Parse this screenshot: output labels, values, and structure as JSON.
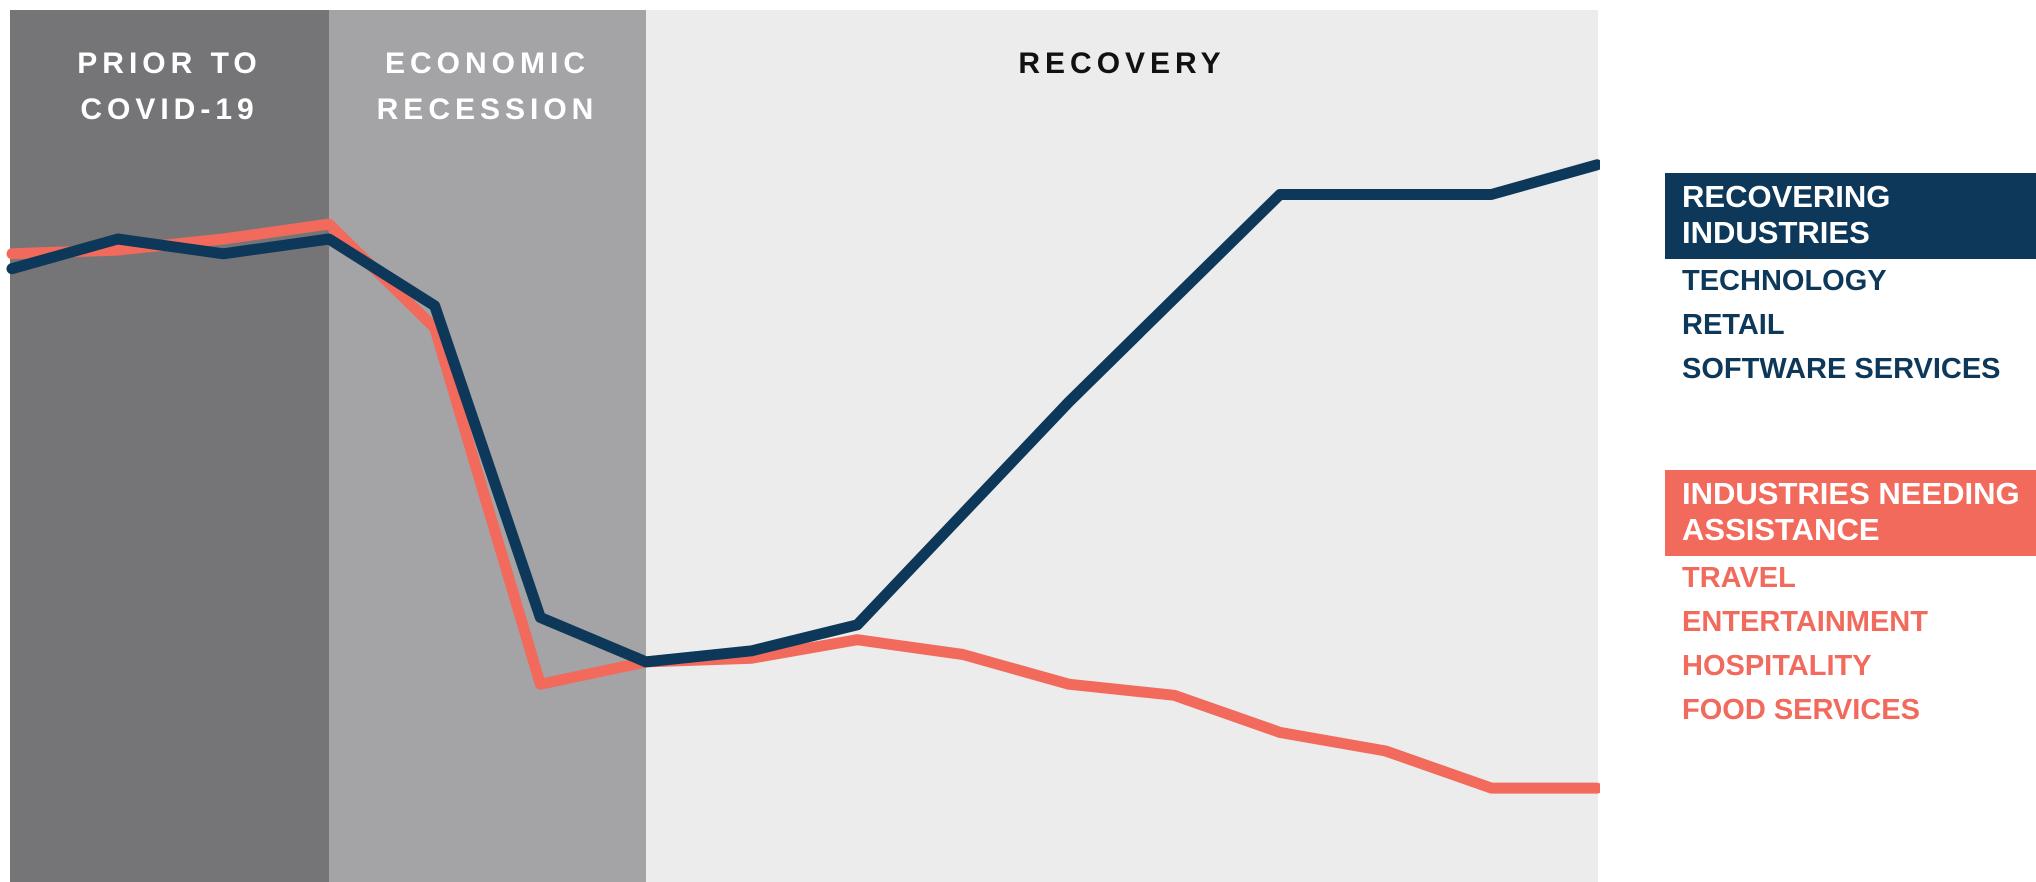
{
  "chart_data": {
    "type": "line",
    "colors": {
      "phase_fills": [
        "#757577",
        "#a4a4a7",
        "#ececec"
      ],
      "recovering": "#0d3859",
      "assistance": "#f26a5c"
    },
    "phases": [
      {
        "lines": [
          "PRIOR TO",
          "COVID-19"
        ],
        "text_color": "#ffffff"
      },
      {
        "lines": [
          "ECONOMIC",
          "RECESSION"
        ],
        "text_color": "#ffffff"
      },
      {
        "lines": [
          "RECOVERY"
        ],
        "text_color": "#111111"
      }
    ],
    "phase_boundaries": [
      0,
      3,
      6,
      15
    ],
    "x": [
      0,
      1,
      2,
      3,
      4,
      5,
      6,
      7,
      8,
      9,
      10,
      11,
      12,
      13,
      14,
      15
    ],
    "ylim": [
      0,
      100
    ],
    "series": [
      {
        "key": "recovering",
        "values": [
          77,
          81,
          79,
          81,
          72,
          30,
          24,
          25.5,
          29,
          44,
          59,
          73,
          87,
          87,
          87,
          91
        ]
      },
      {
        "key": "assistance",
        "values": [
          79,
          79.5,
          81,
          83,
          69,
          21,
          24,
          24.5,
          27,
          25,
          21,
          19.5,
          14.5,
          12,
          7,
          7
        ]
      }
    ]
  },
  "legend": {
    "recovering": {
      "header": [
        "RECOVERING",
        "INDUSTRIES"
      ],
      "items": [
        "TECHNOLOGY",
        "RETAIL",
        "SOFTWARE SERVICES"
      ]
    },
    "assistance": {
      "header": [
        "INDUSTRIES NEEDING",
        "ASSISTANCE"
      ],
      "items": [
        "TRAVEL",
        "ENTERTAINMENT",
        "HOSPITALITY",
        "FOOD SERVICES"
      ]
    }
  }
}
